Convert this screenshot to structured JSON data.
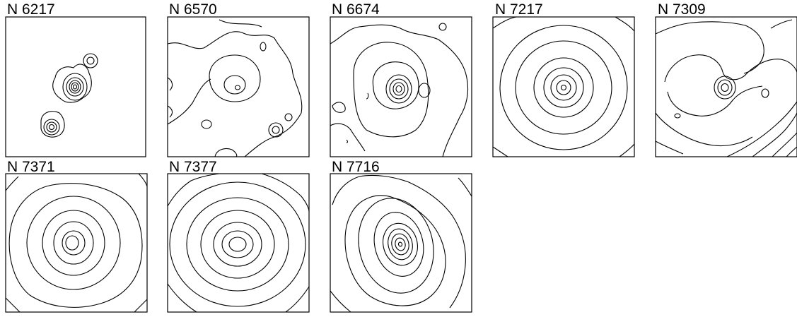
{
  "figure": {
    "panels": [
      {
        "label": "N 6217"
      },
      {
        "label": "N 6570"
      },
      {
        "label": "N 6674"
      },
      {
        "label": "N 7217"
      },
      {
        "label": "N 7309"
      },
      {
        "label": "N 7371"
      },
      {
        "label": "N 7377"
      },
      {
        "label": "N 7716"
      }
    ]
  }
}
